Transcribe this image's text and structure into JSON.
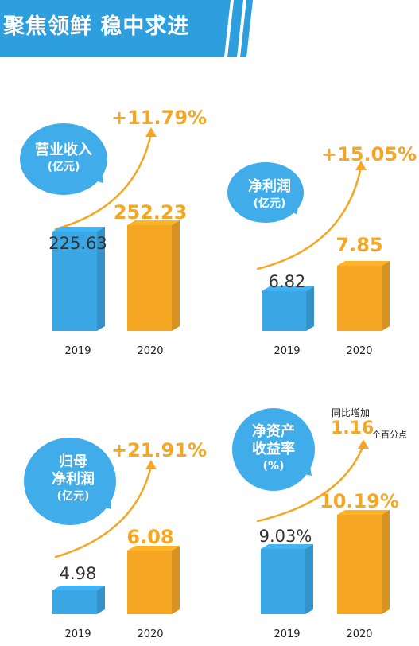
{
  "page_title": "聚焦领鲜 稳中求进",
  "colors": {
    "blue": "#3aa7e4",
    "orange": "#f5a623",
    "header": "#2d9fdf"
  },
  "chart_data": [
    {
      "type": "bar",
      "title": "营业收入",
      "unit": "(亿元)",
      "categories": [
        "2019",
        "2020"
      ],
      "values": [
        225.63,
        252.23
      ],
      "value_labels": [
        "225.63",
        "252.23"
      ],
      "growth": "+11.79%"
    },
    {
      "type": "bar",
      "title": "净利润",
      "unit": "(亿元)",
      "categories": [
        "2019",
        "2020"
      ],
      "values": [
        6.82,
        7.85
      ],
      "value_labels": [
        "6.82",
        "7.85"
      ],
      "growth": "+15.05%"
    },
    {
      "type": "bar",
      "title": "归母净利润",
      "title_lines": [
        "归母",
        "净利润"
      ],
      "unit": "(亿元)",
      "categories": [
        "2019",
        "2020"
      ],
      "values": [
        4.98,
        6.08
      ],
      "value_labels": [
        "4.98",
        "6.08"
      ],
      "growth": "+21.91%"
    },
    {
      "type": "bar",
      "title": "净资产收益率",
      "title_lines": [
        "净资产",
        "收益率"
      ],
      "unit": "(%)",
      "categories": [
        "2019",
        "2020"
      ],
      "values": [
        9.03,
        10.19
      ],
      "value_labels": [
        "9.03%",
        "10.19%"
      ],
      "change_label": "同比增加",
      "change_value": "1.16",
      "change_unit": "个百分点"
    }
  ]
}
